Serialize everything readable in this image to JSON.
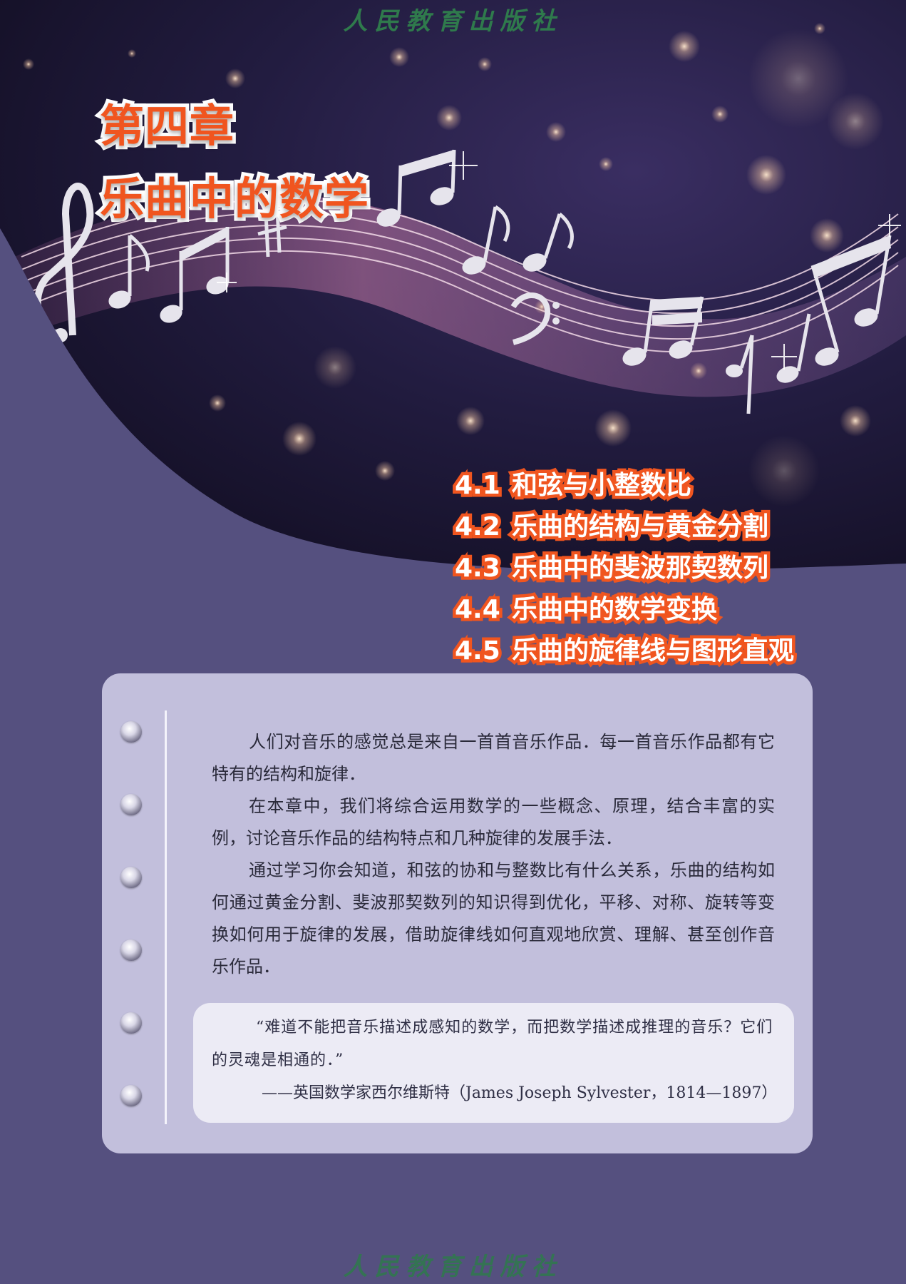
{
  "publisher": "人民教育出版社",
  "chapter": {
    "number": "第四章",
    "title": "乐曲中的数学"
  },
  "toc": [
    {
      "section": "4.1",
      "title": "和弦与小整数比"
    },
    {
      "section": "4.2",
      "title": "乐曲的结构与黄金分割"
    },
    {
      "section": "4.3",
      "title": "乐曲中的斐波那契数列"
    },
    {
      "section": "4.4",
      "title": "乐曲中的数学变换"
    },
    {
      "section": "4.5",
      "title": "乐曲的旋律线与图形直观"
    }
  ],
  "intro": {
    "paragraphs": [
      "人们对音乐的感觉总是来自一首首音乐作品．每一首音乐作品都有它特有的结构和旋律．",
      "在本章中，我们将综合运用数学的一些概念、原理，结合丰富的实例，讨论音乐作品的结构特点和几种旋律的发展手法．",
      "通过学习你会知道，和弦的协和与整数比有什么关系，乐曲的结构如何通过黄金分割、斐波那契数列的知识得到优化，平移、对称、旋转等变换如何用于旋律的发展，借助旋律线如何直观地欣赏、理解、甚至创作音乐作品．"
    ]
  },
  "quote": {
    "text": "“难道不能把音乐描述成感知的数学，而把数学描述成推理的音乐？它们的灵魂是相通的．”",
    "source": "——英国数学家西尔维斯特（James Joseph Sylvester，1814—1897）"
  },
  "colors": {
    "page_background": "#55507f",
    "hero_dark": "#1c1836",
    "title_orange": "#f0551f",
    "card": "#c2bfdc",
    "quote_box": "#ecebf5"
  },
  "icons": [
    "treble-clef-icon",
    "music-note-icon",
    "sharp-icon",
    "bass-clef-icon"
  ]
}
